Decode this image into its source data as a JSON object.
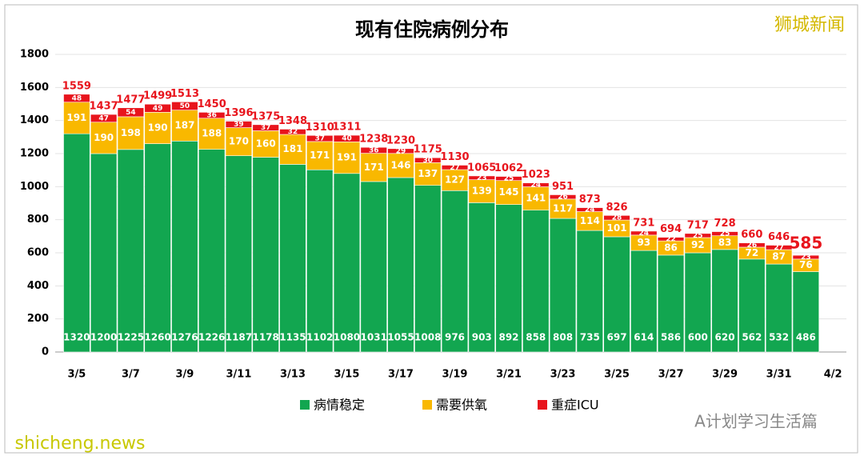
{
  "chart_data": {
    "type": "stacked-bar",
    "title": "现有住院病例分布",
    "categories": [
      "3/5",
      null,
      "3/7",
      null,
      "3/9",
      null,
      "3/11",
      null,
      "3/13",
      null,
      "3/15",
      null,
      "3/17",
      null,
      "3/19",
      null,
      "3/21",
      null,
      "3/23",
      null,
      "3/25",
      null,
      "3/27",
      null,
      "3/29",
      null,
      "3/31",
      null,
      "4/2"
    ],
    "series": [
      {
        "name": "病情稳定",
        "color": "#12a650",
        "values": [
          1320,
          1200,
          1225,
          1260,
          1276,
          1226,
          1187,
          1178,
          1135,
          1102,
          1080,
          1031,
          1055,
          1008,
          976,
          903,
          892,
          858,
          808,
          735,
          697,
          614,
          586,
          600,
          620,
          562,
          532,
          486,
          null
        ]
      },
      {
        "name": "需要供氧",
        "color": "#f9b800",
        "values": [
          191,
          190,
          198,
          190,
          187,
          188,
          170,
          160,
          181,
          171,
          191,
          171,
          146,
          137,
          127,
          139,
          145,
          141,
          117,
          114,
          101,
          93,
          86,
          92,
          83,
          72,
          87,
          76,
          null
        ]
      },
      {
        "name": "重症ICU",
        "color": "#e8141c",
        "values": [
          48,
          47,
          54,
          49,
          50,
          36,
          39,
          37,
          32,
          37,
          40,
          36,
          29,
          30,
          27,
          23,
          25,
          24,
          26,
          24,
          28,
          24,
          22,
          25,
          25,
          26,
          27,
          23,
          null
        ]
      }
    ],
    "totals": [
      1559,
      1437,
      1477,
      1499,
      1513,
      1450,
      1396,
      1375,
      1348,
      1310,
      1311,
      1238,
      1230,
      1175,
      1130,
      1065,
      1062,
      1023,
      951,
      873,
      826,
      731,
      694,
      717,
      728,
      660,
      646,
      585,
      null
    ],
    "ylim": [
      0,
      1800
    ],
    "yticks": [
      0,
      200,
      400,
      600,
      800,
      1000,
      1200,
      1400,
      1600,
      1800
    ],
    "grid": true,
    "legend": "bottom"
  },
  "watermarks": [
    "狮城新闻",
    "A计划学习生活篇",
    "shicheng.news"
  ]
}
